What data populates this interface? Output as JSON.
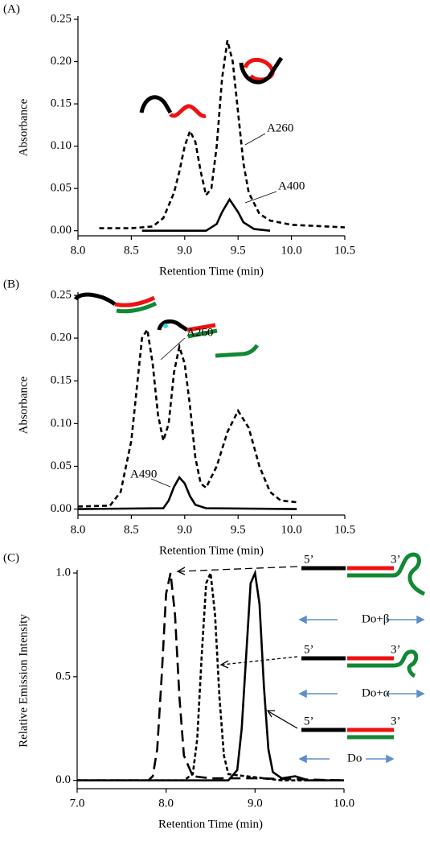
{
  "chart_data": [
    {
      "type": "line",
      "panel_label": "(A)",
      "x_label": "Retention Time (min)",
      "y_label": "Absorbance",
      "xlim": [
        8.0,
        10.5
      ],
      "ylim": [
        -0.006,
        0.25
      ],
      "xticks": [
        {
          "value": 8.0,
          "label": "8.0"
        },
        {
          "value": 8.5,
          "label": "8.5"
        },
        {
          "value": 9.0,
          "label": "9.0"
        },
        {
          "value": 9.5,
          "label": "9.5"
        },
        {
          "value": 10.0,
          "label": "10.0"
        },
        {
          "value": 10.5,
          "label": "10.5"
        }
      ],
      "yticks": [
        {
          "value": 0,
          "label": "0.00"
        },
        {
          "value": 0.05,
          "label": "0.05"
        },
        {
          "value": 0.1,
          "label": "0.10"
        },
        {
          "value": 0.15,
          "label": "0.15"
        },
        {
          "value": 0.2,
          "label": "0.20"
        },
        {
          "value": 0.25,
          "label": "0.25"
        }
      ],
      "series": [
        {
          "name": "A260",
          "color": "#000000",
          "line_style": "dashed",
          "x": [
            8.2,
            8.5,
            8.7,
            8.8,
            8.9,
            8.95,
            9.0,
            9.05,
            9.1,
            9.15,
            9.2,
            9.25,
            9.3,
            9.35,
            9.4,
            9.45,
            9.5,
            9.55,
            9.6,
            9.7,
            9.8,
            10.0,
            10.5
          ],
          "values": [
            0.003,
            0.003,
            0.005,
            0.015,
            0.045,
            0.07,
            0.1,
            0.118,
            0.105,
            0.07,
            0.042,
            0.05,
            0.1,
            0.18,
            0.225,
            0.2,
            0.14,
            0.08,
            0.045,
            0.02,
            0.012,
            0.007,
            0.004
          ]
        },
        {
          "name": "A400",
          "color": "#000000",
          "line_style": "solid",
          "x": [
            8.6,
            9.2,
            9.3,
            9.35,
            9.42,
            9.5,
            9.55,
            9.65,
            9.8
          ],
          "values": [
            0.0,
            0.0,
            0.008,
            0.022,
            0.037,
            0.022,
            0.01,
            0.002,
            0.0
          ]
        }
      ]
    },
    {
      "type": "line",
      "panel_label": "(B)",
      "x_label": "Retention Time (min)",
      "y_label": "Absorbance",
      "xlim": [
        8.0,
        10.5
      ],
      "ylim": [
        -0.007,
        0.25
      ],
      "xticks": [
        {
          "value": 8.0,
          "label": "8.0"
        },
        {
          "value": 8.5,
          "label": "8.5"
        },
        {
          "value": 9.0,
          "label": "9.0"
        },
        {
          "value": 9.5,
          "label": "9.5"
        },
        {
          "value": 10.0,
          "label": "10.0"
        },
        {
          "value": 10.5,
          "label": "10.5"
        }
      ],
      "yticks": [
        {
          "value": 0,
          "label": "0.00"
        },
        {
          "value": 0.05,
          "label": "0.05"
        },
        {
          "value": 0.1,
          "label": "0.10"
        },
        {
          "value": 0.15,
          "label": "0.15"
        },
        {
          "value": 0.2,
          "label": "0.20"
        },
        {
          "value": 0.25,
          "label": "0.25"
        }
      ],
      "series": [
        {
          "name": "A260",
          "color": "#000000",
          "line_style": "dashed",
          "x": [
            8.0,
            8.3,
            8.4,
            8.5,
            8.55,
            8.6,
            8.65,
            8.7,
            8.75,
            8.8,
            8.85,
            8.9,
            8.95,
            9.0,
            9.05,
            9.1,
            9.15,
            9.2,
            9.3,
            9.4,
            9.5,
            9.6,
            9.7,
            9.8,
            9.9,
            10.05
          ],
          "values": [
            0.003,
            0.004,
            0.02,
            0.08,
            0.14,
            0.2,
            0.21,
            0.17,
            0.11,
            0.08,
            0.1,
            0.16,
            0.19,
            0.17,
            0.12,
            0.06,
            0.03,
            0.025,
            0.05,
            0.09,
            0.115,
            0.095,
            0.05,
            0.02,
            0.01,
            0.008
          ]
        },
        {
          "name": "A490",
          "color": "#000000",
          "line_style": "solid",
          "x": [
            8.0,
            8.8,
            8.85,
            8.9,
            8.95,
            9.0,
            9.05,
            9.1,
            9.2,
            10.05
          ],
          "values": [
            0.0,
            0.001,
            0.01,
            0.026,
            0.037,
            0.03,
            0.015,
            0.005,
            0.001,
            0.0
          ]
        }
      ]
    },
    {
      "type": "line",
      "panel_label": "(C)",
      "x_label": "Retention Time (min)",
      "y_label": "Relative Emission Intensity",
      "xlim": [
        7.0,
        10.0
      ],
      "ylim": [
        -0.04,
        1.0
      ],
      "xticks": [
        {
          "value": 7.0,
          "label": "7.0"
        },
        {
          "value": 8.0,
          "label": "8.0"
        },
        {
          "value": 9.0,
          "label": "9.0"
        },
        {
          "value": 10.0,
          "label": "10.0"
        }
      ],
      "yticks": [
        {
          "value": 0,
          "label": "0.0"
        },
        {
          "value": 0.5,
          "label": "0.5"
        },
        {
          "value": 1.0,
          "label": "1.0"
        }
      ],
      "annotations": [
        "5’",
        "3’"
      ],
      "series": [
        {
          "name": "Do+β",
          "color": "#000000",
          "line_style": "long-dash",
          "x": [
            7.0,
            7.8,
            7.85,
            7.9,
            7.95,
            8.0,
            8.05,
            8.1,
            8.15,
            8.2,
            8.3,
            8.5,
            9.0,
            10.0
          ],
          "values": [
            0.0,
            0.0,
            0.02,
            0.15,
            0.5,
            0.9,
            1.0,
            0.8,
            0.4,
            0.12,
            0.02,
            0.01,
            0.01,
            0.0
          ]
        },
        {
          "name": "Do+α",
          "color": "#000000",
          "line_style": "short-dash",
          "x": [
            7.0,
            8.2,
            8.3,
            8.35,
            8.4,
            8.45,
            8.5,
            8.55,
            8.6,
            8.65,
            8.7,
            8.9,
            9.3,
            10.0
          ],
          "values": [
            0.0,
            0.0,
            0.03,
            0.2,
            0.6,
            0.95,
            1.0,
            0.8,
            0.4,
            0.12,
            0.03,
            0.02,
            0.0,
            0.0
          ]
        },
        {
          "name": "Do",
          "color": "#000000",
          "line_style": "solid",
          "x": [
            7.0,
            8.7,
            8.8,
            8.85,
            8.9,
            8.95,
            9.0,
            9.05,
            9.1,
            9.15,
            9.2,
            9.3,
            9.45,
            9.6,
            10.0
          ],
          "values": [
            0.0,
            0.0,
            0.05,
            0.25,
            0.6,
            0.95,
            1.0,
            0.85,
            0.45,
            0.15,
            0.04,
            0.01,
            0.02,
            0.0,
            0.0
          ]
        }
      ]
    }
  ]
}
